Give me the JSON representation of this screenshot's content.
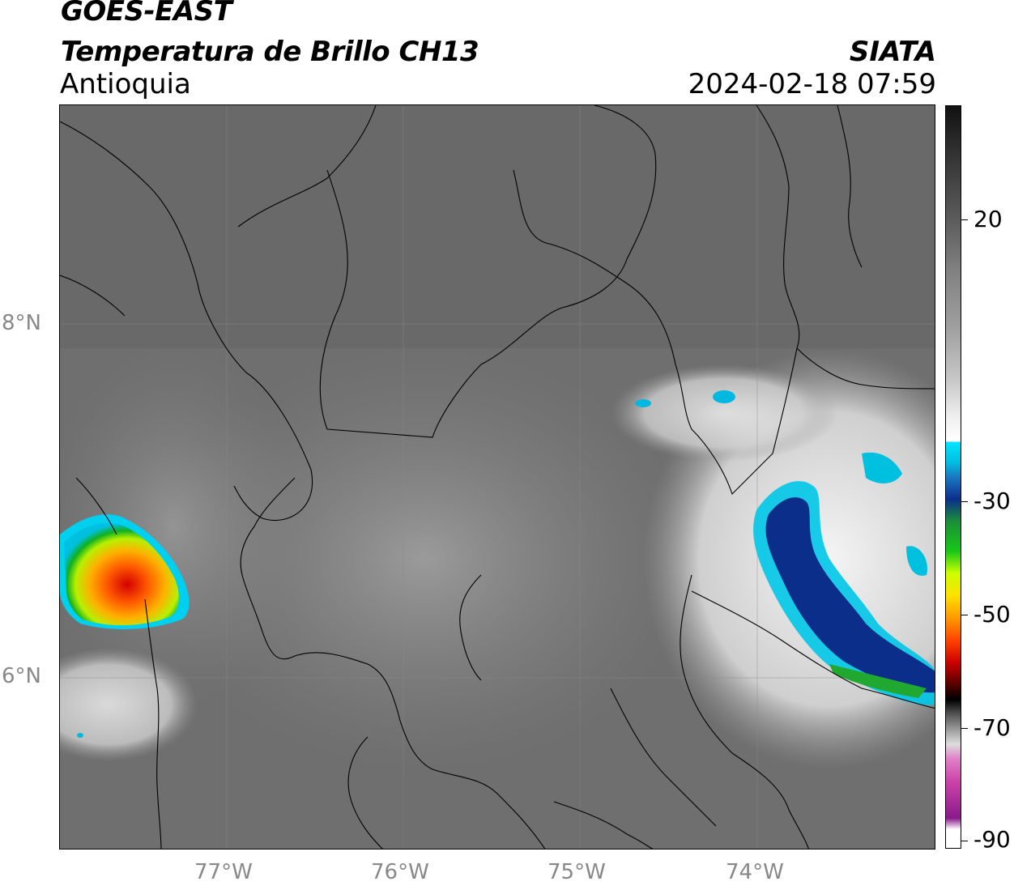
{
  "header": {
    "title_line1": "GOES-EAST",
    "title_line2": "Temperatura de Brillo CH13",
    "region": "Antioquia",
    "organization": "SIATA",
    "datetime": "2024-02-18 07:59"
  },
  "map": {
    "lat_labels": [
      "8°N",
      "6°N"
    ],
    "lon_labels": [
      "77°W",
      "76°W",
      "75°W",
      "74°W"
    ]
  },
  "colorbar": {
    "tick_labels": [
      "20",
      "-30",
      "-50",
      "-70",
      "-90"
    ]
  },
  "colors": {
    "frame": "#000000",
    "axis_label": "#888888",
    "cloud_top_cold": "#ff4400"
  }
}
